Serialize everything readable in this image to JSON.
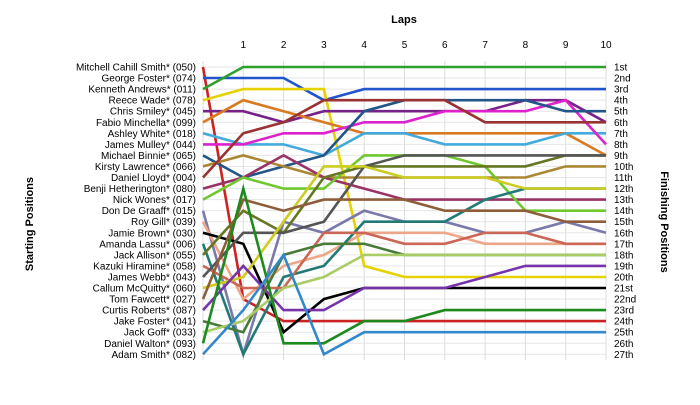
{
  "chart_data": {
    "type": "line",
    "title": "",
    "xlabel": "Laps",
    "ylabel_left": "Starting Positions",
    "ylabel_right": "Finishing Positions",
    "laps": [
      1,
      2,
      3,
      4,
      5,
      6,
      7,
      8,
      9,
      10
    ],
    "finish_labels": [
      "1st",
      "2nd",
      "3rd",
      "4th",
      "5th",
      "6th",
      "7th",
      "8th",
      "9th",
      "10th",
      "11th",
      "12th",
      "13th",
      "14th",
      "15th",
      "16th",
      "17th",
      "18th",
      "19th",
      "20th",
      "21st",
      "22nd",
      "23rd",
      "24th",
      "25th",
      "26th",
      "27th"
    ],
    "grid": true,
    "series": [
      {
        "name": "Mitchell Cahill Smith* (050)",
        "color": "#cc2222",
        "positions": [
          1,
          22,
          24,
          24,
          24,
          24,
          24,
          24,
          24,
          24,
          24
        ]
      },
      {
        "name": "George Foster* (074)",
        "color": "#2255cc",
        "positions": [
          2,
          2,
          2,
          4,
          3,
          3,
          3,
          3,
          3,
          3,
          3
        ]
      },
      {
        "name": "Kenneth Andrews* (011)",
        "color": "#2ea02e",
        "positions": [
          3,
          1,
          1,
          1,
          1,
          1,
          1,
          1,
          1,
          1,
          1
        ]
      },
      {
        "name": "Reece Wade* (078)",
        "color": "#e6d200",
        "positions": [
          4,
          3,
          3,
          3,
          19,
          20,
          20,
          20,
          20,
          20,
          20
        ]
      },
      {
        "name": "Chris Smiley* (045)",
        "color": "#772288",
        "positions": [
          5,
          5,
          6,
          5,
          5,
          5,
          5,
          5,
          4,
          4,
          6
        ]
      },
      {
        "name": "Fabio Minchella* (099)",
        "color": "#d87a22",
        "positions": [
          6,
          4,
          5,
          6,
          7,
          7,
          7,
          7,
          7,
          7,
          9
        ]
      },
      {
        "name": "Ashley White* (018)",
        "color": "#44aadd",
        "positions": [
          7,
          8,
          8,
          9,
          7,
          7,
          8,
          8,
          8,
          7,
          7
        ]
      },
      {
        "name": "James Mulley* (044)",
        "color": "#dd22cc",
        "positions": [
          8,
          8,
          7,
          7,
          6,
          6,
          5,
          5,
          5,
          4,
          8
        ]
      },
      {
        "name": "Michael Binnie* (065)",
        "color": "#225588",
        "positions": [
          9,
          11,
          10,
          9,
          5,
          4,
          4,
          4,
          4,
          5,
          5
        ]
      },
      {
        "name": "Kirsty Lawrence* (066)",
        "color": "#aa8833",
        "positions": [
          10,
          9,
          10,
          11,
          11,
          11,
          11,
          11,
          11,
          10,
          10
        ]
      },
      {
        "name": "Daniel Lloyd* (004)",
        "color": "#993333",
        "positions": [
          11,
          7,
          6,
          4,
          4,
          4,
          4,
          6,
          6,
          6,
          6
        ]
      },
      {
        "name": "Benji Hetherington* (080)",
        "color": "#993366",
        "positions": [
          12,
          11,
          9,
          11,
          12,
          13,
          13,
          13,
          13,
          13,
          13
        ]
      },
      {
        "name": "Nick Wones* (017)",
        "color": "#6fc82e",
        "positions": [
          13,
          11,
          12,
          12,
          9,
          9,
          9,
          10,
          14,
          14,
          14
        ]
      },
      {
        "name": "Don De Graaff* (015)",
        "color": "#7a7aaa",
        "positions": [
          14,
          27,
          15,
          16,
          14,
          15,
          15,
          16,
          16,
          15,
          16
        ]
      },
      {
        "name": "Roy Gill* (039)",
        "color": "#eea688",
        "positions": [
          15,
          22,
          19,
          18,
          16,
          16,
          16,
          17,
          17,
          17,
          17
        ]
      },
      {
        "name": "Jamie Brown* (030)",
        "color": "#000000",
        "positions": [
          16,
          17,
          25,
          22,
          21,
          21,
          21,
          21,
          21,
          21,
          21
        ]
      },
      {
        "name": "Amanda Lassu* (006)",
        "color": "#227a77",
        "positions": [
          17,
          27,
          20,
          19,
          15,
          15,
          15,
          13,
          12,
          12,
          12
        ]
      },
      {
        "name": "Jack Allison* (055)",
        "color": "#667722",
        "positions": [
          18,
          14,
          16,
          11,
          10,
          10,
          10,
          10,
          10,
          9,
          9
        ]
      },
      {
        "name": "Kazuki Hiramine* (058)",
        "color": "#cc6655",
        "positions": [
          19,
          21,
          21,
          16,
          16,
          17,
          17,
          16,
          16,
          17,
          17
        ]
      },
      {
        "name": "James Webb* (043)",
        "color": "#555555",
        "positions": [
          20,
          16,
          16,
          15,
          10,
          9,
          9,
          9,
          9,
          9,
          9
        ]
      },
      {
        "name": "Callum McQuitty* (060)",
        "color": "#cccc22",
        "positions": [
          21,
          20,
          15,
          10,
          10,
          11,
          11,
          11,
          12,
          12,
          12
        ]
      },
      {
        "name": "Tom Fawcett* (027)",
        "color": "#8e5e3a",
        "positions": [
          22,
          13,
          14,
          13,
          13,
          13,
          14,
          14,
          14,
          15,
          15
        ]
      },
      {
        "name": "Curtis Roberts* (087)",
        "color": "#7733aa",
        "positions": [
          23,
          19,
          23,
          23,
          21,
          21,
          21,
          20,
          19,
          19,
          19
        ]
      },
      {
        "name": "Jake Foster* (041)",
        "color": "#4a7a3a",
        "positions": [
          24,
          25,
          18,
          17,
          17,
          18,
          18,
          18,
          18,
          18,
          18
        ]
      },
      {
        "name": "Jack Goff* (033)",
        "color": "#aacc66",
        "positions": [
          25,
          24,
          21,
          20,
          18,
          18,
          18,
          18,
          18,
          18,
          18
        ]
      },
      {
        "name": "Daniel Walton* (093)",
        "color": "#1e8a1e",
        "positions": [
          26,
          12,
          26,
          26,
          24,
          24,
          23,
          23,
          23,
          23,
          23
        ]
      },
      {
        "name": "Adam Smith* (082)",
        "color": "#3388cc",
        "positions": [
          27,
          23,
          18,
          27,
          25,
          25,
          25,
          25,
          25,
          25,
          25
        ]
      }
    ]
  }
}
